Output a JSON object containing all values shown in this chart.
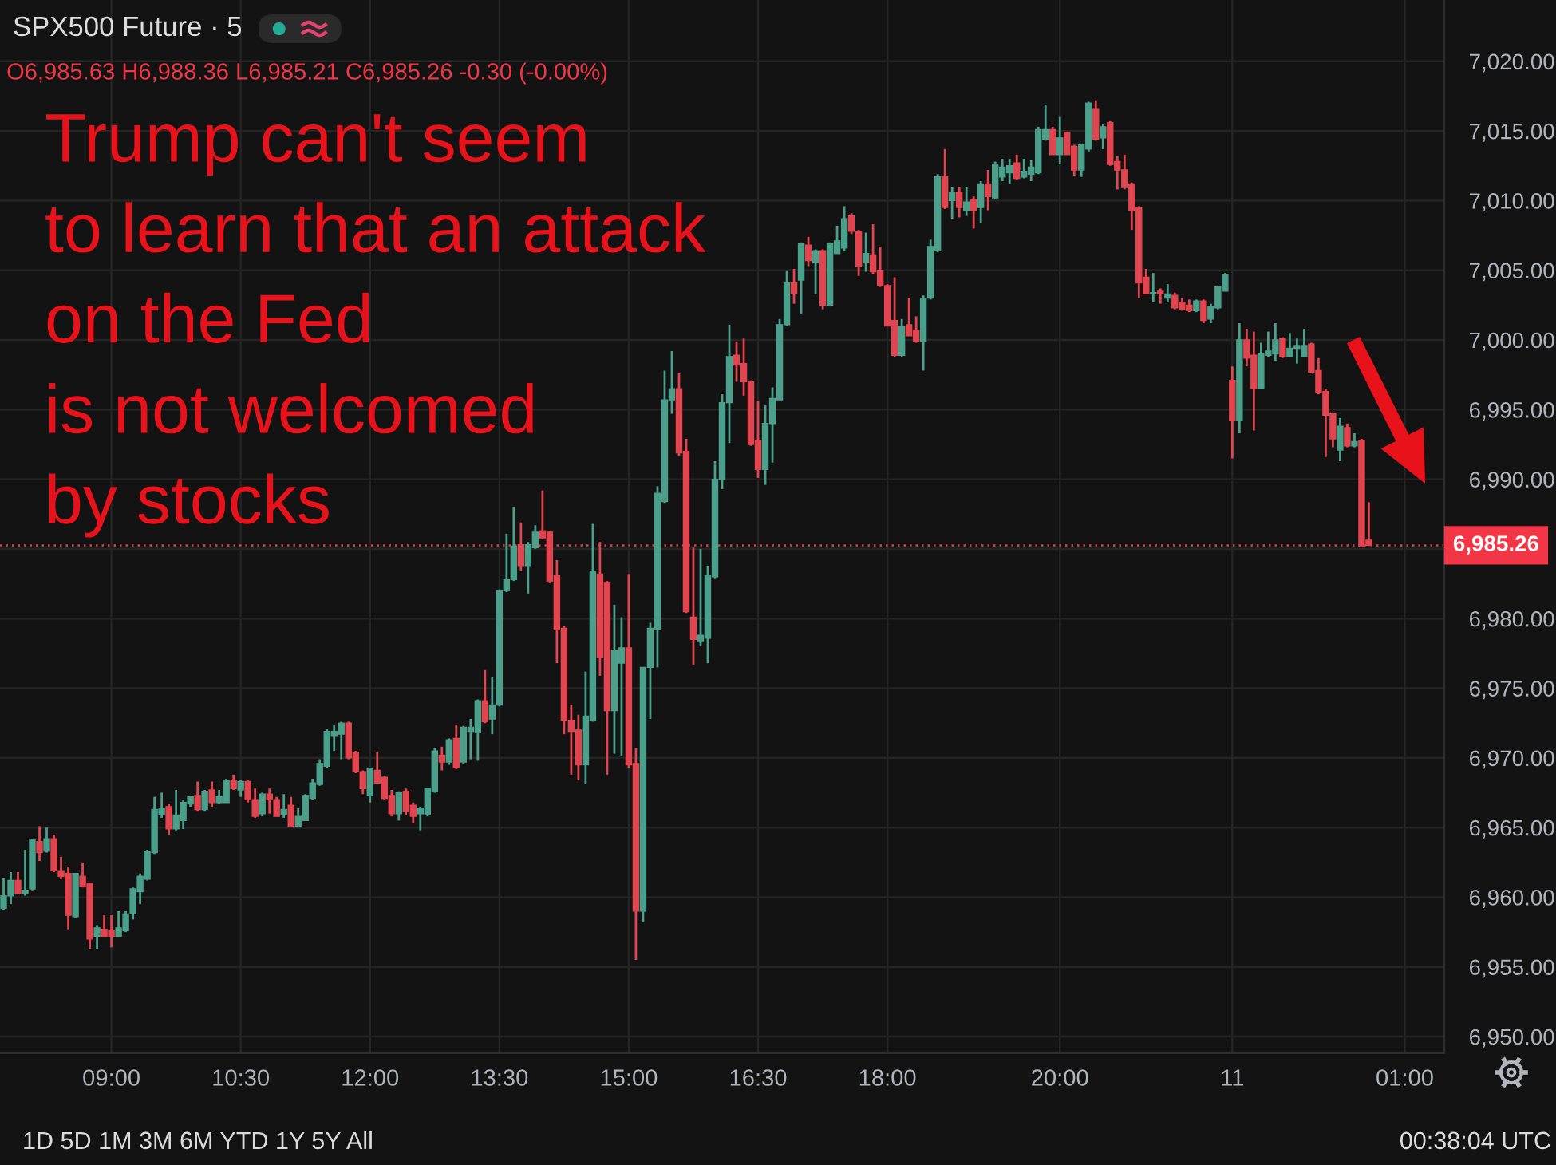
{
  "chart_data": {
    "type": "candlestick",
    "title": "SPX500 Future · 5",
    "subtitle": "O6,985.63 H6,988.36 L6,985.21 C6,985.26 -0.30 (-0.00%)",
    "annotations": [
      "Trump can't seem\nto learn that an attack\non the Fed\nis not welcomed\nby stocks",
      "1D 5D 1M 3M 6M YTD 1Y 5Y All",
      "00:38:04 UTC"
    ],
    "categories": [
      null,
      null,
      null,
      null,
      null,
      null,
      null,
      null,
      null,
      null,
      null,
      null,
      null,
      null,
      null,
      "09:00",
      null,
      null,
      null,
      null,
      null,
      null,
      null,
      null,
      null,
      null,
      null,
      null,
      null,
      null,
      null,
      null,
      null,
      "10:30",
      null,
      null,
      null,
      null,
      null,
      null,
      null,
      null,
      null,
      null,
      null,
      null,
      null,
      null,
      null,
      null,
      null,
      "12:00",
      null,
      null,
      null,
      null,
      null,
      null,
      null,
      null,
      null,
      null,
      null,
      null,
      null,
      null,
      null,
      null,
      null,
      "13:30",
      null,
      null,
      null,
      null,
      null,
      null,
      null,
      null,
      null,
      null,
      null,
      null,
      null,
      null,
      null,
      null,
      null,
      "15:00",
      null,
      null,
      null,
      null,
      null,
      null,
      null,
      null,
      null,
      null,
      null,
      null,
      null,
      null,
      null,
      null,
      null,
      "16:30",
      null,
      null,
      null,
      null,
      null,
      null,
      null,
      null,
      null,
      null,
      null,
      null,
      null,
      null,
      null,
      null,
      null,
      "18:00",
      null,
      null,
      null,
      null,
      null,
      null,
      null,
      null,
      null,
      null,
      null,
      null,
      null,
      null,
      null,
      null,
      null,
      null,
      null,
      null,
      null,
      null,
      null,
      "20:00",
      null,
      null,
      null,
      null,
      null,
      null,
      null,
      null,
      null,
      null,
      null,
      null,
      null,
      null,
      null,
      null,
      null,
      null,
      null,
      null,
      null,
      null,
      null,
      "11",
      null,
      null,
      null,
      null,
      null,
      null,
      null,
      null,
      null,
      null,
      null,
      null,
      null,
      null,
      null,
      null,
      null,
      null,
      null,
      null,
      null,
      null,
      null,
      "01:00",
      null,
      null,
      null,
      null,
      null
    ],
    "ohlc": [
      [
        6959.2,
        6961.4,
        6959.1,
        6960.1
      ],
      [
        6960.1,
        6961.8,
        6959.5,
        6961.2
      ],
      [
        6961.2,
        6961.8,
        6960.2,
        6960.3
      ],
      [
        6960.3,
        6963.4,
        6960.1,
        6960.5
      ],
      [
        6960.6,
        6964.2,
        6960.5,
        6964.1
      ],
      [
        6964.0,
        6965.1,
        6962.6,
        6963.2
      ],
      [
        6963.3,
        6965.0,
        6963.2,
        6964.2
      ],
      [
        6964.2,
        6964.5,
        6961.8,
        6961.9
      ],
      [
        6961.9,
        6962.9,
        6961.3,
        6961.5
      ],
      [
        6961.7,
        6962.2,
        6957.7,
        6958.7
      ],
      [
        6958.6,
        6961.7,
        6958.5,
        6961.7
      ],
      [
        6961.5,
        6962.5,
        6960.7,
        6960.8
      ],
      [
        6961.0,
        6961.0,
        6956.3,
        6957.0
      ],
      [
        6957.2,
        6958.0,
        6956.3,
        6957.8
      ],
      [
        6957.7,
        6958.7,
        6957.2,
        6957.2
      ],
      [
        6957.6,
        6958.7,
        6956.4,
        6957.2
      ],
      [
        6957.2,
        6959.0,
        6957.2,
        6957.8
      ],
      [
        6957.6,
        6959.0,
        6957.5,
        6958.8
      ],
      [
        6958.8,
        6960.7,
        6958.4,
        6960.6
      ],
      [
        6960.4,
        6961.7,
        6959.5,
        6961.5
      ],
      [
        6961.3,
        6963.4,
        6961.2,
        6963.3
      ],
      [
        6963.2,
        6967.2,
        6963.1,
        6966.3
      ],
      [
        6965.9,
        6967.5,
        6965.7,
        6966.4
      ],
      [
        6966.5,
        6966.7,
        6964.5,
        6964.9
      ],
      [
        6964.9,
        6967.7,
        6964.8,
        6965.9
      ],
      [
        6965.5,
        6967.0,
        6964.9,
        6966.8
      ],
      [
        6966.7,
        6967.3,
        6966.5,
        6967.2
      ],
      [
        6967.3,
        6968.3,
        6966.2,
        6966.3
      ],
      [
        6966.3,
        6967.7,
        6966.2,
        6967.6
      ],
      [
        6967.7,
        6968.3,
        6966.5,
        6966.8
      ],
      [
        6966.8,
        6967.7,
        6966.7,
        6967.2
      ],
      [
        6966.8,
        6968.5,
        6966.8,
        6968.4
      ],
      [
        6968.4,
        6968.8,
        6967.7,
        6967.8
      ],
      [
        6967.7,
        6968.4,
        6967.2,
        6968.3
      ],
      [
        6968.3,
        6968.4,
        6966.8,
        6967.0
      ],
      [
        6967.0,
        6967.8,
        6965.7,
        6965.8
      ],
      [
        6966.0,
        6967.5,
        6965.8,
        6967.4
      ],
      [
        6967.4,
        6967.8,
        6966.0,
        6967.0
      ],
      [
        6967.0,
        6967.2,
        6965.8,
        6965.8
      ],
      [
        6965.9,
        6967.4,
        6965.7,
        6966.3
      ],
      [
        6966.6,
        6967.2,
        6965.0,
        6965.1
      ],
      [
        6965.1,
        6966.4,
        6965.0,
        6965.8
      ],
      [
        6965.5,
        6967.4,
        6965.5,
        6967.3
      ],
      [
        6967.1,
        6968.5,
        6967.0,
        6968.2
      ],
      [
        6968.1,
        6969.9,
        6968.0,
        6969.6
      ],
      [
        6969.4,
        6972.1,
        6969.3,
        6971.9
      ],
      [
        6971.6,
        6972.4,
        6970.5,
        6971.9
      ],
      [
        6971.7,
        6972.6,
        6969.9,
        6972.5
      ],
      [
        6972.5,
        6972.6,
        6969.9,
        6970.0
      ],
      [
        6970.4,
        6970.5,
        6968.9,
        6969.0
      ],
      [
        6969.0,
        6969.1,
        6967.4,
        6967.8
      ],
      [
        6967.3,
        6969.3,
        6966.8,
        6969.2
      ],
      [
        6969.1,
        6970.4,
        6968.2,
        6968.2
      ],
      [
        6968.6,
        6968.7,
        6967.0,
        6967.1
      ],
      [
        6967.3,
        6967.7,
        6965.8,
        6966.0
      ],
      [
        6966.0,
        6967.6,
        6965.5,
        6967.5
      ],
      [
        6967.6,
        6967.8,
        6965.9,
        6966.2
      ],
      [
        6966.6,
        6966.8,
        6965.3,
        6965.8
      ],
      [
        6966.0,
        6966.5,
        6964.8,
        6966.4
      ],
      [
        6965.9,
        6967.8,
        6965.8,
        6967.8
      ],
      [
        6967.6,
        6970.7,
        6967.5,
        6970.5
      ],
      [
        6970.2,
        6970.8,
        6969.1,
        6969.7
      ],
      [
        6969.7,
        6971.4,
        6969.5,
        6971.3
      ],
      [
        6971.4,
        6972.4,
        6969.2,
        6969.3
      ],
      [
        6969.7,
        6972.3,
        6969.6,
        6972.2
      ],
      [
        6971.9,
        6972.8,
        6969.9,
        6972.2
      ],
      [
        6971.8,
        6974.2,
        6969.8,
        6974.1
      ],
      [
        6974.1,
        6976.3,
        6972.5,
        6972.6
      ],
      [
        6972.8,
        6975.8,
        6971.7,
        6973.8
      ],
      [
        6973.8,
        6982.1,
        6973.7,
        6982.0
      ],
      [
        6982.0,
        6986.1,
        6981.9,
        6982.8
      ],
      [
        6982.8,
        6988.0,
        6982.7,
        6985.2
      ],
      [
        6985.3,
        6986.9,
        6983.4,
        6983.8
      ],
      [
        6983.8,
        6985.5,
        6981.8,
        6985.3
      ],
      [
        6985.1,
        6986.7,
        6985.0,
        6986.2
      ],
      [
        6986.3,
        6989.2,
        6985.7,
        6985.8
      ],
      [
        6986.2,
        6986.3,
        6982.6,
        6982.7
      ],
      [
        6983.1,
        6984.2,
        6976.8,
        6979.2
      ],
      [
        6979.3,
        6979.5,
        6971.7,
        6972.7
      ],
      [
        6972.7,
        6973.8,
        6968.8,
        6971.9
      ],
      [
        6972.0,
        6973.1,
        6968.4,
        6969.5
      ],
      [
        6969.5,
        6976.2,
        6968.1,
        6973.0
      ],
      [
        6972.7,
        6986.8,
        6972.6,
        6983.4
      ],
      [
        6983.2,
        6985.5,
        6975.9,
        6977.2
      ],
      [
        6982.6,
        6982.7,
        6968.8,
        6973.4
      ],
      [
        6973.4,
        6981.0,
        6970.3,
        6977.7
      ],
      [
        6976.8,
        6980.1,
        6970.1,
        6977.9
      ],
      [
        6977.9,
        6983.2,
        6969.3,
        6969.5
      ],
      [
        6969.6,
        6970.7,
        6955.5,
        6959.0
      ],
      [
        6959.0,
        6976.5,
        6958.2,
        6976.5
      ],
      [
        6976.5,
        6979.7,
        6972.8,
        6979.3
      ],
      [
        6979.2,
        6989.5,
        6976.5,
        6989.0
      ],
      [
        6988.4,
        6997.8,
        6988.3,
        6995.7
      ],
      [
        6995.7,
        6999.2,
        6994.7,
        6996.5
      ],
      [
        6996.5,
        6997.6,
        6991.7,
        6991.9
      ],
      [
        6992.0,
        6992.9,
        6980.4,
        6980.5
      ],
      [
        6980.1,
        6985.1,
        6976.7,
        6978.5
      ],
      [
        6978.4,
        6985.0,
        6978.0,
        6978.8
      ],
      [
        6978.6,
        6983.8,
        6976.8,
        6983.1
      ],
      [
        6983.0,
        6991.3,
        6982.9,
        6990.0
      ],
      [
        6990.0,
        6996.1,
        6989.3,
        6995.5
      ],
      [
        6995.5,
        7001.1,
        6992.6,
        6998.8
      ],
      [
        6998.9,
        6999.9,
        6997.0,
        6998.2
      ],
      [
        6998.3,
        7000.1,
        6996.0,
        6997.0
      ],
      [
        6997.0,
        6997.1,
        6992.4,
        6992.5
      ],
      [
        6992.8,
        6995.6,
        6990.1,
        6990.7
      ],
      [
        6990.7,
        6995.3,
        6989.6,
        6994.0
      ],
      [
        6994.0,
        6996.6,
        6991.2,
        6995.8
      ],
      [
        6995.7,
        7001.5,
        6995.7,
        7001.1
      ],
      [
        7001.1,
        7005.0,
        7001.0,
        7004.1
      ],
      [
        7004.1,
        7005.1,
        7002.6,
        7003.3
      ],
      [
        7004.3,
        7007.0,
        7001.9,
        7006.9
      ],
      [
        7006.8,
        7007.4,
        7005.3,
        7005.7
      ],
      [
        7005.6,
        7006.5,
        7003.3,
        7006.4
      ],
      [
        7006.4,
        7006.5,
        7002.2,
        7002.5
      ],
      [
        7002.5,
        7007.0,
        7002.4,
        7006.9
      ],
      [
        7006.2,
        7008.2,
        7006.2,
        7007.1
      ],
      [
        7006.6,
        7009.6,
        7006.4,
        7008.7
      ],
      [
        7008.9,
        7009.1,
        7007.6,
        7007.8
      ],
      [
        7007.8,
        7007.9,
        7004.6,
        7005.3
      ],
      [
        7005.6,
        7007.7,
        7004.9,
        7006.2
      ],
      [
        7006.1,
        7008.3,
        7004.7,
        7004.9
      ],
      [
        7005.0,
        7006.7,
        7003.8,
        7003.9
      ],
      [
        7003.9,
        7004.0,
        7001.0,
        7001.0
      ],
      [
        7001.4,
        7004.5,
        6998.8,
        6998.9
      ],
      [
        6998.9,
        7001.5,
        6998.8,
        7001.0
      ],
      [
        7001.1,
        7003.0,
        7000.3,
        7000.3
      ],
      [
        7000.7,
        7001.7,
        6999.8,
        6999.9
      ],
      [
        6999.9,
        7003.2,
        6997.8,
        7003.0
      ],
      [
        7003.0,
        7007.2,
        7002.9,
        7006.7
      ],
      [
        7006.4,
        7011.9,
        7006.3,
        7011.7
      ],
      [
        7011.7,
        7013.7,
        7009.4,
        7009.5
      ],
      [
        7010.0,
        7011.0,
        7008.7,
        7010.6
      ],
      [
        7010.6,
        7011.0,
        7008.8,
        7009.5
      ],
      [
        7009.3,
        7011.0,
        7008.9,
        7009.9
      ],
      [
        7010.1,
        7010.3,
        7008.0,
        7009.3
      ],
      [
        7009.5,
        7011.4,
        7008.4,
        7011.2
      ],
      [
        7011.2,
        7012.2,
        7009.3,
        7010.3
      ],
      [
        7010.2,
        7012.8,
        7010.1,
        7012.6
      ],
      [
        7011.7,
        7013.0,
        7011.4,
        7012.4
      ],
      [
        7012.0,
        7013.0,
        7011.2,
        7012.5
      ],
      [
        7012.7,
        7013.3,
        7011.5,
        7011.6
      ],
      [
        7011.7,
        7013.0,
        7011.6,
        7012.1
      ],
      [
        7011.9,
        7012.9,
        7011.4,
        7012.4
      ],
      [
        7012.0,
        7015.3,
        7011.9,
        7015.1
      ],
      [
        7014.4,
        7016.9,
        7014.3,
        7015.1
      ],
      [
        7015.1,
        7015.3,
        7013.3,
        7013.3
      ],
      [
        7013.3,
        7016.0,
        7012.6,
        7014.5
      ],
      [
        7014.9,
        7014.9,
        7013.3,
        7013.3
      ],
      [
        7013.9,
        7014.0,
        7011.8,
        7012.2
      ],
      [
        7012.2,
        7014.1,
        7011.7,
        7014.0
      ],
      [
        7013.7,
        7017.1,
        7013.5,
        7017.0
      ],
      [
        7016.6,
        7017.2,
        7014.3,
        7014.4
      ],
      [
        7014.5,
        7015.5,
        7013.7,
        7015.3
      ],
      [
        7015.6,
        7015.7,
        7012.5,
        7012.6
      ],
      [
        7012.8,
        7013.2,
        7010.8,
        7012.2
      ],
      [
        7012.2,
        7013.3,
        7010.8,
        7011.0
      ],
      [
        7011.2,
        7011.3,
        7007.9,
        7009.3
      ],
      [
        7009.5,
        7009.6,
        7003.0,
        7004.1
      ],
      [
        7004.5,
        7005.1,
        7003.3,
        7003.3
      ],
      [
        7003.3,
        7004.8,
        7002.7,
        7003.4
      ],
      [
        7003.5,
        7003.7,
        7002.6,
        7003.3
      ],
      [
        7003.0,
        7004.0,
        7002.7,
        7003.3
      ],
      [
        7003.2,
        7003.4,
        7002.2,
        7002.3
      ],
      [
        7002.7,
        7003.0,
        7002.1,
        7002.2
      ],
      [
        7002.5,
        7002.9,
        7002.0,
        7002.1
      ],
      [
        7002.1,
        7002.9,
        7002.0,
        7002.8
      ],
      [
        7002.8,
        7002.9,
        7001.2,
        7001.4
      ],
      [
        7001.5,
        7002.6,
        7001.2,
        7002.4
      ],
      [
        7002.3,
        7003.8,
        7002.2,
        7003.8
      ],
      [
        7003.5,
        7004.8,
        7003.5,
        7004.7
      ],
      [
        6997.1,
        6998.1,
        6991.5,
        6994.2
      ],
      [
        6994.2,
        7001.2,
        6993.3,
        7000.0
      ],
      [
        7000.0,
        7000.8,
        6998.1,
        6998.7
      ],
      [
        6998.9,
        7000.6,
        6993.5,
        6996.5
      ],
      [
        6996.5,
        6999.8,
        6996.5,
        6999.0
      ],
      [
        6998.9,
        7000.6,
        6998.8,
        6999.2
      ],
      [
        6999.0,
        7001.2,
        6998.5,
        7000.0
      ],
      [
        7000.1,
        7000.2,
        6998.7,
        6998.8
      ],
      [
        6998.8,
        7000.5,
        6998.8,
        6999.4
      ],
      [
        6999.4,
        7000.1,
        6998.3,
        6999.6
      ],
      [
        6998.8,
        7000.8,
        6998.8,
        6999.6
      ],
      [
        6999.7,
        6999.8,
        6997.6,
        6997.7
      ],
      [
        6997.8,
        6998.7,
        6996.1,
        6996.2
      ],
      [
        6996.3,
        6996.5,
        6991.6,
        6994.6
      ],
      [
        6994.7,
        6994.8,
        6992.3,
        6992.9
      ],
      [
        6992.1,
        6994.4,
        6991.3,
        6993.8
      ],
      [
        6993.7,
        6994.0,
        6992.3,
        6992.4
      ],
      [
        6992.4,
        6993.3,
        6992.3,
        6992.7
      ],
      [
        6992.8,
        6992.9,
        6985.1,
        6985.2
      ],
      [
        6985.63,
        6988.36,
        6985.21,
        6985.26
      ],
      null,
      null,
      null,
      null,
      null,
      null,
      null,
      null,
      null,
      null
    ],
    "colors": [
      "#4aa08a",
      "#4aa08a",
      "#e2454f",
      "#4aa08a",
      "#4aa08a",
      "#e2454f",
      "#4aa08a",
      "#e2454f",
      "#e2454f",
      "#e2454f",
      "#4aa08a",
      "#e2454f",
      "#e2454f",
      "#4aa08a",
      "#e2454f",
      "#e2454f",
      "#4aa08a",
      "#4aa08a",
      "#4aa08a",
      "#4aa08a",
      "#4aa08a",
      "#4aa08a",
      "#4aa08a",
      "#e2454f",
      "#4aa08a",
      "#4aa08a",
      "#4aa08a",
      "#e2454f",
      "#4aa08a",
      "#e2454f",
      "#4aa08a",
      "#4aa08a",
      "#e2454f",
      "#4aa08a",
      "#e2454f",
      "#e2454f",
      "#4aa08a",
      "#e2454f",
      "#e2454f",
      "#4aa08a",
      "#e2454f",
      "#4aa08a",
      "#4aa08a",
      "#4aa08a",
      "#4aa08a",
      "#4aa08a",
      "#4aa08a",
      "#4aa08a",
      "#e2454f",
      "#e2454f",
      "#e2454f",
      "#4aa08a",
      "#e2454f",
      "#e2454f",
      "#e2454f",
      "#4aa08a",
      "#e2454f",
      "#e2454f",
      "#4aa08a",
      "#4aa08a",
      "#4aa08a",
      "#e2454f",
      "#4aa08a",
      "#e2454f",
      "#4aa08a",
      "#4aa08a",
      "#4aa08a",
      "#e2454f",
      "#4aa08a",
      "#4aa08a",
      "#4aa08a",
      "#4aa08a",
      "#e2454f",
      "#4aa08a",
      "#4aa08a",
      "#e2454f",
      "#e2454f",
      "#e2454f",
      "#e2454f",
      "#e2454f",
      "#e2454f",
      "#4aa08a",
      "#4aa08a",
      "#e2454f",
      "#e2454f",
      "#4aa08a",
      "#4aa08a",
      "#e2454f",
      "#e2454f",
      "#4aa08a",
      "#4aa08a",
      "#4aa08a",
      "#4aa08a",
      "#4aa08a",
      "#e2454f",
      "#e2454f",
      "#e2454f",
      "#4aa08a",
      "#4aa08a",
      "#4aa08a",
      "#4aa08a",
      "#4aa08a",
      "#e2454f",
      "#e2454f",
      "#e2454f",
      "#e2454f",
      "#4aa08a",
      "#4aa08a",
      "#4aa08a",
      "#4aa08a",
      "#e2454f",
      "#4aa08a",
      "#e2454f",
      "#4aa08a",
      "#e2454f",
      "#4aa08a",
      "#4aa08a",
      "#4aa08a",
      "#e2454f",
      "#e2454f",
      "#4aa08a",
      "#e2454f",
      "#e2454f",
      "#e2454f",
      "#e2454f",
      "#4aa08a",
      "#e2454f",
      "#e2454f",
      "#4aa08a",
      "#4aa08a",
      "#4aa08a",
      "#e2454f",
      "#4aa08a",
      "#e2454f",
      "#4aa08a",
      "#e2454f",
      "#4aa08a",
      "#e2454f",
      "#4aa08a",
      "#4aa08a",
      "#4aa08a",
      "#e2454f",
      "#4aa08a",
      "#4aa08a",
      "#4aa08a",
      "#4aa08a",
      "#e2454f",
      "#4aa08a",
      "#e2454f",
      "#e2454f",
      "#4aa08a",
      "#4aa08a",
      "#e2454f",
      "#4aa08a",
      "#e2454f",
      "#e2454f",
      "#e2454f",
      "#e2454f",
      "#e2454f",
      "#e2454f",
      "#4aa08a",
      "#e2454f",
      "#4aa08a",
      "#e2454f",
      "#e2454f",
      "#e2454f",
      "#4aa08a",
      "#e2454f",
      "#4aa08a",
      "#4aa08a",
      "#4aa08a",
      "#e2454f",
      "#4aa08a",
      "#e2454f",
      "#e2454f",
      "#4aa08a",
      "#4aa08a",
      "#4aa08a",
      "#e2454f",
      "#4aa08a",
      "#4aa08a",
      "#4aa08a",
      "#e2454f",
      "#e2454f",
      "#e2454f",
      "#e2454f",
      "#4aa08a",
      "#e2454f",
      "#4aa08a",
      "#e2454f",
      "#e2454f",
      null,
      null,
      null,
      null,
      null,
      null,
      null,
      null,
      null,
      null
    ],
    "ylim": [
      6948.8,
      7024.4
    ],
    "yticks": [
      {
        "value": 6950,
        "label": "6,950.00"
      },
      {
        "value": 6955,
        "label": "6,955.00"
      },
      {
        "value": 6960,
        "label": "6,960.00"
      },
      {
        "value": 6965,
        "label": "6,965.00"
      },
      {
        "value": 6970,
        "label": "6,970.00"
      },
      {
        "value": 6975,
        "label": "6,975.00"
      },
      {
        "value": 6980,
        "label": "6,980.00"
      },
      {
        "value": 6985,
        "label": null
      },
      {
        "value": 6990,
        "label": "6,990.00"
      },
      {
        "value": 6995,
        "label": "6,995.00"
      },
      {
        "value": 7000,
        "label": "7,000.00"
      },
      {
        "value": 7005,
        "label": "7,005.00"
      },
      {
        "value": 7010,
        "label": "7,010.00"
      },
      {
        "value": 7015,
        "label": "7,015.00"
      },
      {
        "value": 7020,
        "label": "7,020.00"
      }
    ],
    "ref_lines": [
      {
        "axis": "y",
        "value": 6985.26,
        "label": "6,985.26",
        "color": "#f23645",
        "line_style": "dotted"
      }
    ],
    "grid": true
  }
}
